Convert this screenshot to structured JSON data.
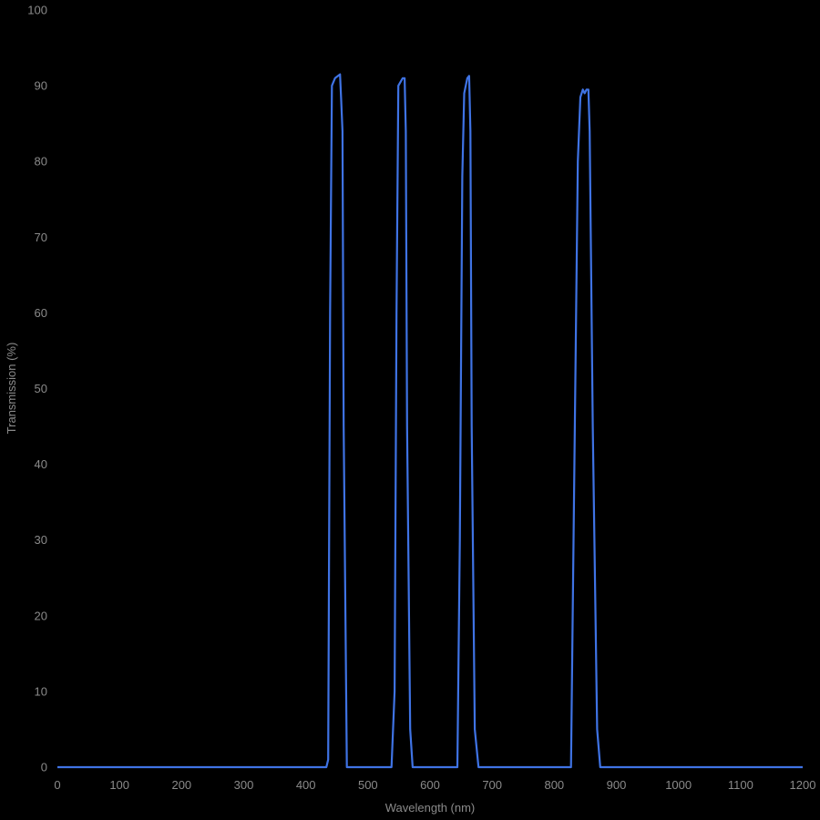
{
  "chart_data": {
    "type": "line",
    "title": "",
    "xlabel": "Wavelength (nm)",
    "ylabel": "Transmission (%)",
    "xlim": [
      0,
      1200
    ],
    "ylim": [
      0,
      100
    ],
    "x_ticks": [
      0,
      100,
      200,
      300,
      400,
      500,
      600,
      700,
      800,
      900,
      1000,
      1100,
      1200
    ],
    "y_ticks": [
      0,
      10,
      20,
      30,
      40,
      50,
      60,
      70,
      80,
      90,
      100
    ],
    "grid": false,
    "legend": null,
    "series": [
      {
        "name": "Transmission",
        "color": "#3f73e4",
        "points": [
          [
            0,
            0
          ],
          [
            433,
            0
          ],
          [
            436,
            1
          ],
          [
            439,
            60
          ],
          [
            442,
            90
          ],
          [
            447,
            91
          ],
          [
            455,
            91.5
          ],
          [
            457,
            88
          ],
          [
            459,
            84
          ],
          [
            461,
            45
          ],
          [
            466,
            0
          ],
          [
            538,
            0
          ],
          [
            543,
            10
          ],
          [
            546,
            60
          ],
          [
            549,
            90
          ],
          [
            556,
            91
          ],
          [
            559,
            91
          ],
          [
            561,
            84
          ],
          [
            563,
            45
          ],
          [
            568,
            5
          ],
          [
            572,
            0
          ],
          [
            644,
            0
          ],
          [
            648,
            30
          ],
          [
            652,
            78
          ],
          [
            655,
            89
          ],
          [
            660,
            91
          ],
          [
            663,
            91.3
          ],
          [
            665,
            84
          ],
          [
            667,
            45
          ],
          [
            672,
            5
          ],
          [
            678,
            0
          ],
          [
            827,
            0
          ],
          [
            831,
            30
          ],
          [
            838,
            80
          ],
          [
            842,
            88.5
          ],
          [
            846,
            89.5
          ],
          [
            849,
            89
          ],
          [
            852,
            89.5
          ],
          [
            855,
            89.5
          ],
          [
            857,
            84
          ],
          [
            862,
            45
          ],
          [
            869,
            5
          ],
          [
            874,
            0
          ],
          [
            1200,
            0
          ]
        ]
      }
    ]
  },
  "axes": {
    "x_title": "Wavelength (nm)",
    "y_title": "Transmission (%)"
  }
}
